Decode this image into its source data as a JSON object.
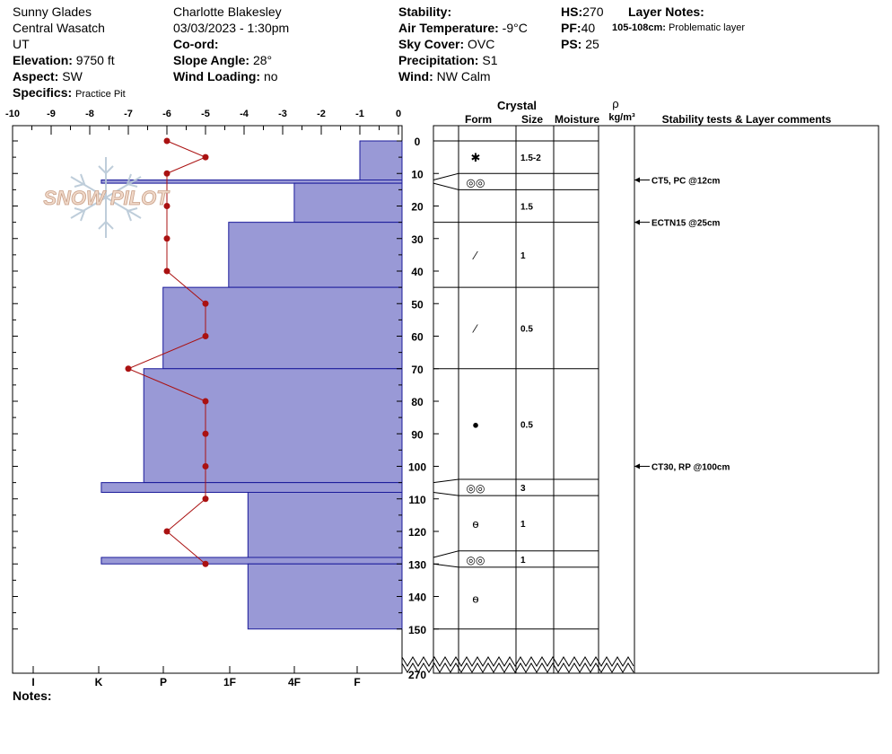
{
  "site": {
    "name": "Sunny Glades",
    "range": "Central Wasatch",
    "state": "UT",
    "elevation_label": "Elevation:",
    "elevation": "9750 ft",
    "aspect_label": "Aspect:",
    "aspect": "SW",
    "specifics_label": "Specifics:",
    "specifics": "Practice Pit"
  },
  "observer": {
    "name": "Charlotte Blakesley",
    "datetime": "03/03/2023 - 1:30pm",
    "coord_label": "Co-ord:",
    "slope_label": "Slope Angle:",
    "slope": "28°",
    "wind_loading_label": "Wind Loading:",
    "wind_loading": "no"
  },
  "conditions": {
    "stability_label": "Stability:",
    "air_temp_label": "Air Temperature:",
    "air_temp": "-9°C",
    "sky_label": "Sky Cover:",
    "sky": "OVC",
    "precip_label": "Precipitation:",
    "precip": "S1",
    "wind_label": "Wind:",
    "wind": "NW Calm"
  },
  "pit": {
    "hs_label": "HS:",
    "hs": "270",
    "pf_label": "PF:",
    "pf": "40",
    "ps_label": "PS:",
    "ps": "25",
    "layer_notes_label": "Layer Notes:",
    "layer_note_depth": "105-108cm:",
    "layer_note_text": "Problematic layer"
  },
  "logo_text": "SNOW PILOT",
  "notes_label": "Notes:",
  "table_headers": {
    "crystal": "Crystal",
    "form": "Form",
    "size": "Size",
    "moisture": "Moisture",
    "rho": "ρ",
    "density_unit": "kg/m³",
    "stability": "Stability tests & Layer comments"
  },
  "colors": {
    "hardness_fill": "#9999d6",
    "hardness_stroke": "#1a1a9a",
    "temperature": "#aa1111",
    "grid": "#000000"
  },
  "chart_data": {
    "type": "snow-profile",
    "x_temp_ticks": [
      "-10",
      "-9",
      "-8",
      "-7",
      "-6",
      "-5",
      "-4",
      "-3",
      "-2",
      "-1",
      "0"
    ],
    "hardness_ticks": [
      "I",
      "K",
      "P",
      "1F",
      "4F",
      "F"
    ],
    "depth_ticks": [
      0,
      10,
      20,
      30,
      40,
      50,
      60,
      70,
      80,
      90,
      100,
      110,
      120,
      130,
      140,
      150
    ],
    "depth_break_label": "270",
    "xlim_temp": [
      -10,
      0
    ],
    "ylim_depth": [
      0,
      150
    ],
    "temperature": {
      "depth": [
        0,
        5,
        10,
        20,
        30,
        40,
        50,
        60,
        70,
        80,
        90,
        100,
        110,
        120,
        130
      ],
      "temp": [
        -6,
        -5,
        -6,
        -6,
        -6,
        -6,
        -5,
        -5,
        -7,
        -5,
        -5,
        -5,
        -5,
        -6,
        -5
      ]
    },
    "hardness_layers": [
      {
        "top": 0,
        "bottom": 12,
        "hardness": -1
      },
      {
        "top": 12,
        "bottom": 13,
        "hardness": -7.7
      },
      {
        "top": 13,
        "bottom": 25,
        "hardness": -2.7
      },
      {
        "top": 25,
        "bottom": 45,
        "hardness": -4.4
      },
      {
        "top": 45,
        "bottom": 70,
        "hardness": -6.1
      },
      {
        "top": 70,
        "bottom": 105,
        "hardness": -6.6
      },
      {
        "top": 105,
        "bottom": 108,
        "hardness": -7.7
      },
      {
        "top": 108,
        "bottom": 128,
        "hardness": -3.9
      },
      {
        "top": 128,
        "bottom": 130,
        "hardness": -7.7
      },
      {
        "top": 130,
        "bottom": 150,
        "hardness": -3.9
      }
    ],
    "crystal_layers": [
      {
        "top": 0,
        "bottom": 10,
        "form": "new-snow",
        "glyph": "✱",
        "size": "1.5-2"
      },
      {
        "top": 10,
        "bottom": 15,
        "form": "surface-hoar",
        "glyph": "◎◎",
        "size": ""
      },
      {
        "top": 15,
        "bottom": 25,
        "form": "",
        "glyph": "",
        "size": "1.5"
      },
      {
        "top": 25,
        "bottom": 45,
        "form": "decomposing",
        "glyph": "⁄",
        "size": "1"
      },
      {
        "top": 45,
        "bottom": 70,
        "form": "decomposing",
        "glyph": "⁄",
        "size": "0.5"
      },
      {
        "top": 70,
        "bottom": 104,
        "form": "rounded",
        "glyph": "●",
        "size": "0.5"
      },
      {
        "top": 104,
        "bottom": 109,
        "form": "surface-hoar",
        "glyph": "◎◎",
        "size": "3"
      },
      {
        "top": 109,
        "bottom": 126,
        "form": "depth-hoar",
        "glyph": "ѳ",
        "size": "1"
      },
      {
        "top": 126,
        "bottom": 131,
        "form": "surface-hoar",
        "glyph": "◎◎",
        "size": "1"
      },
      {
        "top": 131,
        "bottom": 150,
        "form": "depth-hoar",
        "glyph": "ѳ",
        "size": ""
      }
    ],
    "stability_tests": [
      {
        "depth": 12,
        "text": "CT5, PC @12cm"
      },
      {
        "depth": 25,
        "text": "ECTN15 @25cm"
      },
      {
        "depth": 100,
        "text": "CT30, RP @100cm"
      }
    ]
  }
}
